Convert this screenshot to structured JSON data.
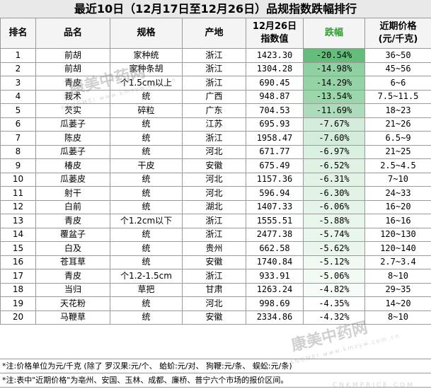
{
  "title": "最近10日（12月17日至12月26日）品规指数跌幅排行",
  "headers": {
    "rank": "排名",
    "name": "品名",
    "spec": "规格",
    "origin": "产地",
    "index_line1": "12月26日",
    "index_line2": "指数值",
    "drop": "跌幅",
    "price_line1": "近期价格",
    "price_line2": "(元/千克)"
  },
  "colors": {
    "drop_header": "#2e9f2e",
    "drop_green_max": "#63be7b",
    "grid": "#9a9a9a"
  },
  "rows": [
    {
      "rank": "1",
      "name": "前胡",
      "spec": "家种统",
      "origin": "浙江",
      "index": "1423.30",
      "drop": "-20.54%",
      "price": "36~50"
    },
    {
      "rank": "2",
      "name": "前胡",
      "spec": "家种条胡",
      "origin": "浙江",
      "index": "1304.28",
      "drop": "-14.98%",
      "price": "45~56"
    },
    {
      "rank": "3",
      "name": "青皮",
      "spec": "个1.5cm以上",
      "origin": "浙江",
      "index": "690.45",
      "drop": "-14.29%",
      "price": "6~6"
    },
    {
      "rank": "4",
      "name": "莪术",
      "spec": "统",
      "origin": "广西",
      "index": "948.87",
      "drop": "-13.54%",
      "price": "7.5~11.5"
    },
    {
      "rank": "5",
      "name": "芡实",
      "spec": "碎粒",
      "origin": "广东",
      "index": "704.53",
      "drop": "-11.69%",
      "price": "18~23"
    },
    {
      "rank": "6",
      "name": "瓜蒌子",
      "spec": "统",
      "origin": "江苏",
      "index": "695.93",
      "drop": "-7.67%",
      "price": "21~26"
    },
    {
      "rank": "7",
      "name": "陈皮",
      "spec": "统",
      "origin": "浙江",
      "index": "1958.47",
      "drop": "-7.60%",
      "price": "6.5~9"
    },
    {
      "rank": "8",
      "name": "瓜蒌子",
      "spec": "统",
      "origin": "河北",
      "index": "671.77",
      "drop": "-6.97%",
      "price": "21~25"
    },
    {
      "rank": "9",
      "name": "椿皮",
      "spec": "干皮",
      "origin": "安徽",
      "index": "675.49",
      "drop": "-6.52%",
      "price": "2.5~4.5"
    },
    {
      "rank": "10",
      "name": "瓜蒌皮",
      "spec": "统",
      "origin": "河北",
      "index": "1157.36",
      "drop": "-6.31%",
      "price": "7~10"
    },
    {
      "rank": "11",
      "name": "射干",
      "spec": "统",
      "origin": "河北",
      "index": "596.94",
      "drop": "-6.30%",
      "price": "24~33"
    },
    {
      "rank": "12",
      "name": "白前",
      "spec": "统",
      "origin": "湖北",
      "index": "1407.33",
      "drop": "-6.06%",
      "price": "16~20"
    },
    {
      "rank": "13",
      "name": "青皮",
      "spec": "个1.2cm以下",
      "origin": "浙江",
      "index": "1555.51",
      "drop": "-5.88%",
      "price": "16~16"
    },
    {
      "rank": "14",
      "name": "覆盆子",
      "spec": "统",
      "origin": "浙江",
      "index": "2477.38",
      "drop": "-5.74%",
      "price": "120~130"
    },
    {
      "rank": "15",
      "name": "白及",
      "spec": "统",
      "origin": "贵州",
      "index": "662.58",
      "drop": "-5.62%",
      "price": "120~140"
    },
    {
      "rank": "16",
      "name": "苍耳草",
      "spec": "统",
      "origin": "安徽",
      "index": "1740.84",
      "drop": "-5.12%",
      "price": "2.7~3.4"
    },
    {
      "rank": "17",
      "name": "青皮",
      "spec": "个1.2-1.5cm",
      "origin": "浙江",
      "index": "933.91",
      "drop": "-5.06%",
      "price": "8~10"
    },
    {
      "rank": "18",
      "name": "当归",
      "spec": "草把",
      "origin": "甘肃",
      "index": "1263.24",
      "drop": "-4.82%",
      "price": "29~35"
    },
    {
      "rank": "19",
      "name": "天花粉",
      "spec": "统",
      "origin": "河北",
      "index": "998.69",
      "drop": "-4.35%",
      "price": "14~20"
    },
    {
      "rank": "20",
      "name": "马鞭草",
      "spec": "统",
      "origin": "安徽",
      "index": "2334.86",
      "drop": "-4.32%",
      "price": "8~10"
    }
  ],
  "notes": [
    "*注:价格单位为元/千克 (除了 罗汉果:元/个、 蛤蚧:元/对、 狗鞭:元/条、 蜈蚣:元/条)",
    "*注:表中\"近期价格\"为亳州、安国、玉林、成都、廉桥、普宁六个市场的报价区间。"
  ],
  "watermark": {
    "brand": "康美中药网",
    "sub": "KANGMEI  www.kmzyw.com.cn",
    "url": "CNKMPRICE.COM"
  }
}
